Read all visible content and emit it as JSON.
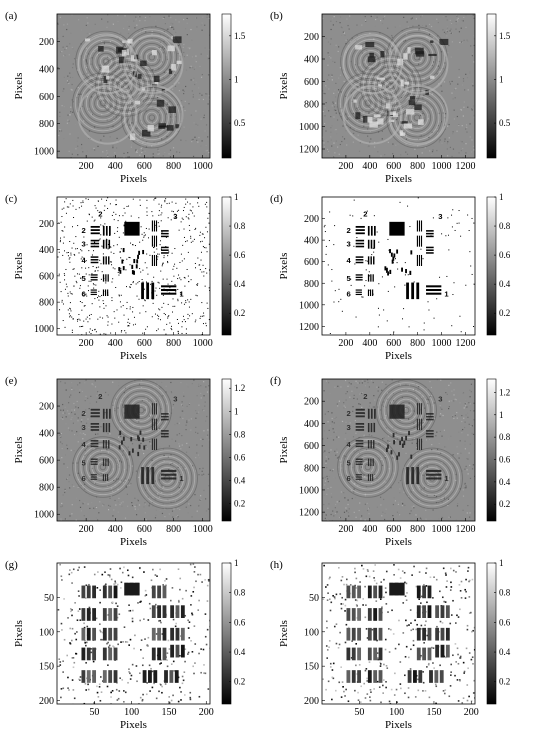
{
  "figure": {
    "panels": [
      {
        "id": "a",
        "label": "(a)",
        "style": "hologram",
        "seed": 11,
        "xlabel": "Pixels",
        "ylabel": "Pixels",
        "xticks": [
          "200",
          "400",
          "600",
          "800",
          "1000"
        ],
        "xtick_values": [
          200,
          400,
          600,
          800,
          1000
        ],
        "yticks": [
          "200",
          "400",
          "600",
          "800",
          "1000"
        ],
        "ytick_values": [
          200,
          400,
          600,
          800,
          1000
        ],
        "range": [
          0,
          1050
        ],
        "colorbar": {
          "ticks": [
            "0.5",
            "1",
            "1.5"
          ],
          "tick_values": [
            0.5,
            1.0,
            1.5
          ],
          "range": [
            0.1,
            1.75
          ]
        }
      },
      {
        "id": "b",
        "label": "(b)",
        "style": "hologram",
        "seed": 23,
        "xlabel": "Pixels",
        "ylabel": "Pixels",
        "xticks": [
          "200",
          "400",
          "600",
          "800",
          "1000",
          "1200"
        ],
        "xtick_values": [
          200,
          400,
          600,
          800,
          1000,
          1200
        ],
        "yticks": [
          "200",
          "400",
          "600",
          "800",
          "1000",
          "1200"
        ],
        "ytick_values": [
          200,
          400,
          600,
          800,
          1000,
          1200
        ],
        "range": [
          0,
          1280
        ],
        "colorbar": {
          "ticks": [
            "0.5",
            "1",
            "1.5"
          ],
          "tick_values": [
            0.5,
            1.0,
            1.5
          ],
          "range": [
            0.1,
            1.75
          ]
        }
      },
      {
        "id": "c",
        "label": "(c)",
        "style": "binary",
        "seed": 37,
        "xlabel": "Pixels",
        "ylabel": "Pixels",
        "xticks": [
          "200",
          "400",
          "600",
          "800",
          "1000"
        ],
        "xtick_values": [
          200,
          400,
          600,
          800,
          1000
        ],
        "yticks": [
          "200",
          "400",
          "600",
          "800",
          "1000"
        ],
        "ytick_values": [
          200,
          400,
          600,
          800,
          1000
        ],
        "range": [
          0,
          1050
        ],
        "colorbar": {
          "ticks": [
            "0.2",
            "0.4",
            "0.6",
            "0.8",
            "1"
          ],
          "tick_values": [
            0.2,
            0.4,
            0.6,
            0.8,
            1.0
          ],
          "range": [
            0.05,
            1.0
          ]
        }
      },
      {
        "id": "d",
        "label": "(d)",
        "style": "binary-clean",
        "seed": 41,
        "xlabel": "Pixels",
        "ylabel": "Pixels",
        "xticks": [
          "200",
          "400",
          "600",
          "800",
          "1000",
          "1200"
        ],
        "xtick_values": [
          200,
          400,
          600,
          800,
          1000,
          1200
        ],
        "yticks": [
          "200",
          "400",
          "600",
          "800",
          "1000",
          "1200"
        ],
        "ytick_values": [
          200,
          400,
          600,
          800,
          1000,
          1200
        ],
        "range": [
          0,
          1280
        ],
        "colorbar": {
          "ticks": [
            "0.2",
            "0.4",
            "0.6",
            "0.8",
            "1"
          ],
          "tick_values": [
            0.2,
            0.4,
            0.6,
            0.8,
            1.0
          ],
          "range": [
            0.05,
            1.0
          ]
        }
      },
      {
        "id": "e",
        "label": "(e)",
        "style": "recon",
        "seed": 53,
        "xlabel": "Pixels",
        "ylabel": "Pixels",
        "xticks": [
          "200",
          "400",
          "600",
          "800",
          "1000"
        ],
        "xtick_values": [
          200,
          400,
          600,
          800,
          1000
        ],
        "yticks": [
          "200",
          "400",
          "600",
          "800",
          "1000"
        ],
        "ytick_values": [
          200,
          400,
          600,
          800,
          1000
        ],
        "range": [
          0,
          1050
        ],
        "colorbar": {
          "ticks": [
            "0.2",
            "0.4",
            "0.6",
            "0.8",
            "1",
            "1.2"
          ],
          "tick_values": [
            0.2,
            0.4,
            0.6,
            0.8,
            1.0,
            1.2
          ],
          "range": [
            0.05,
            1.28
          ]
        }
      },
      {
        "id": "f",
        "label": "(f)",
        "style": "recon",
        "seed": 67,
        "xlabel": "Pixels",
        "ylabel": "Pixels",
        "xticks": [
          "200",
          "400",
          "600",
          "800",
          "1000",
          "1200"
        ],
        "xtick_values": [
          200,
          400,
          600,
          800,
          1000,
          1200
        ],
        "yticks": [
          "200",
          "400",
          "600",
          "800",
          "1000",
          "1200"
        ],
        "ytick_values": [
          200,
          400,
          600,
          800,
          1000,
          1200
        ],
        "range": [
          0,
          1280
        ],
        "colorbar": {
          "ticks": [
            "0.2",
            "0.4",
            "0.6",
            "0.8",
            "1",
            "1.2"
          ],
          "tick_values": [
            0.2,
            0.4,
            0.6,
            0.8,
            1.0,
            1.2
          ],
          "range": [
            0.05,
            1.32
          ]
        }
      },
      {
        "id": "g",
        "label": "(g)",
        "style": "lowres",
        "seed": 79,
        "xlabel": "Pixels",
        "ylabel": "Pixels",
        "xticks": [
          "50",
          "100",
          "150",
          "200"
        ],
        "xtick_values": [
          50,
          100,
          150,
          200
        ],
        "yticks": [
          "50",
          "100",
          "150",
          "200"
        ],
        "ytick_values": [
          50,
          100,
          150,
          200
        ],
        "range": [
          0,
          205
        ],
        "colorbar": {
          "ticks": [
            "0.2",
            "0.4",
            "0.6",
            "0.8",
            "1"
          ],
          "tick_values": [
            0.2,
            0.4,
            0.6,
            0.8,
            1.0
          ],
          "range": [
            0.05,
            1.0
          ]
        }
      },
      {
        "id": "h",
        "label": "(h)",
        "style": "lowres",
        "seed": 97,
        "xlabel": "Pixels",
        "ylabel": "Pixels",
        "xticks": [
          "50",
          "100",
          "150",
          "200"
        ],
        "xtick_values": [
          50,
          100,
          150,
          200
        ],
        "yticks": [
          "50",
          "100",
          "150",
          "200"
        ],
        "ytick_values": [
          50,
          100,
          150,
          200
        ],
        "range": [
          0,
          205
        ],
        "colorbar": {
          "ticks": [
            "0.2",
            "0.4",
            "0.6",
            "0.8",
            "1"
          ],
          "tick_values": [
            0.2,
            0.4,
            0.6,
            0.8,
            1.0
          ],
          "range": [
            0.05,
            1.0
          ]
        }
      }
    ]
  }
}
